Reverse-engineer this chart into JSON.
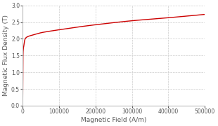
{
  "title": "",
  "xlabel": "Magnetic Field (A/m)",
  "ylabel": "Magnetic Flux Density (T)",
  "xlim": [
    0,
    500000
  ],
  "ylim": [
    0.0,
    3.0
  ],
  "xticks": [
    0,
    100000,
    200000,
    300000,
    400000,
    500000
  ],
  "yticks": [
    0.0,
    0.5,
    1.0,
    1.5,
    2.0,
    2.5,
    3.0
  ],
  "line_color": "#cc0000",
  "line_width": 1.0,
  "grid_color": "#cccccc",
  "grid_style": "dashed",
  "background_color": "#ffffff",
  "bh_points_H": [
    0,
    100,
    200,
    400,
    600,
    800,
    1000,
    1500,
    2000,
    3000,
    4000,
    5000,
    7000,
    10000,
    15000,
    20000,
    30000,
    50000,
    70000,
    100000,
    150000,
    200000,
    300000,
    400000,
    500000
  ],
  "bh_points_B": [
    0.0,
    0.2,
    0.5,
    0.9,
    1.2,
    1.4,
    1.54,
    1.66,
    1.72,
    1.78,
    1.85,
    1.93,
    2.0,
    2.04,
    2.07,
    2.09,
    2.12,
    2.18,
    2.22,
    2.27,
    2.35,
    2.42,
    2.54,
    2.63,
    2.73
  ]
}
